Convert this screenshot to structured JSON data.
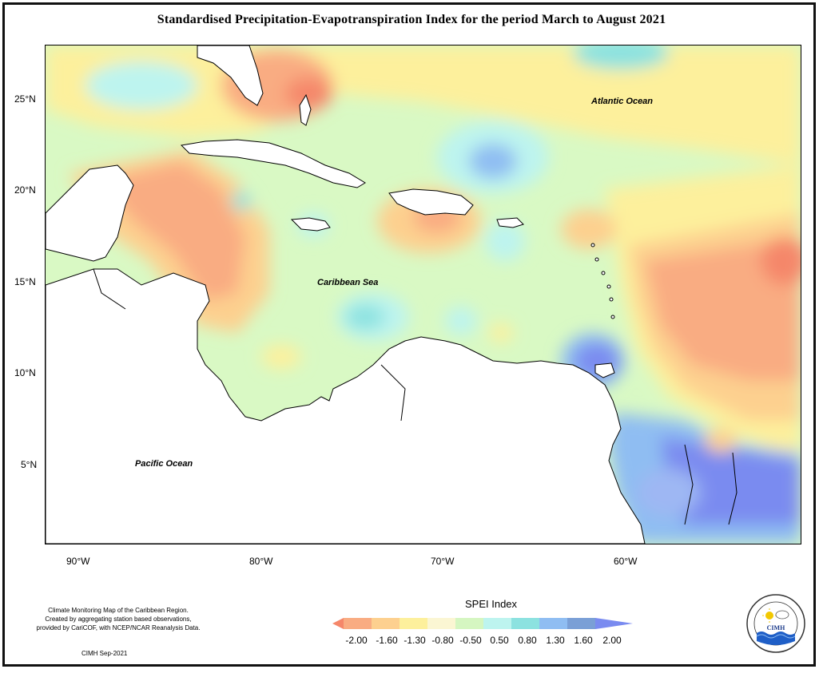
{
  "title": "Standardised Precipitation-Evapotranspiration Index for the period March to August 2021",
  "map": {
    "latitude_labels": [
      "25°N",
      "20°N",
      "15°N",
      "10°N",
      "5°N"
    ],
    "longitude_labels": [
      "90°W",
      "80°W",
      "70°W",
      "60°W"
    ],
    "labels": {
      "atlantic": "Atlantic Ocean",
      "caribbean": "Caribbean Sea",
      "pacific": "Pacific Ocean"
    },
    "land_color": "#ffffff",
    "ocean_base_color": "#d9f9c4"
  },
  "legend": {
    "title": "SPEI Index",
    "ticks": [
      "-2.00",
      "-1.60",
      "-1.30",
      "-0.80",
      "-0.50",
      "0.50",
      "0.80",
      "1.30",
      "1.60",
      "2.00"
    ],
    "colors": [
      "#f5876a",
      "#f9ac82",
      "#fdd08f",
      "#fdf09c",
      "#fbf6d3",
      "#d5f6c1",
      "#bdf4ef",
      "#8ce2e0",
      "#8fbdf2",
      "#7a9fd6",
      "#7a8bf0"
    ]
  },
  "credits": {
    "line1": "Climate Monitoring Map of the Caribbean Region.",
    "line2": "Created by aggregating station based observations,",
    "line3": "provided by CariCOF, with NCEP/NCAR Reanalysis Data.",
    "date": "CIMH Sep-2021"
  },
  "logo": {
    "text": "CIMH"
  }
}
